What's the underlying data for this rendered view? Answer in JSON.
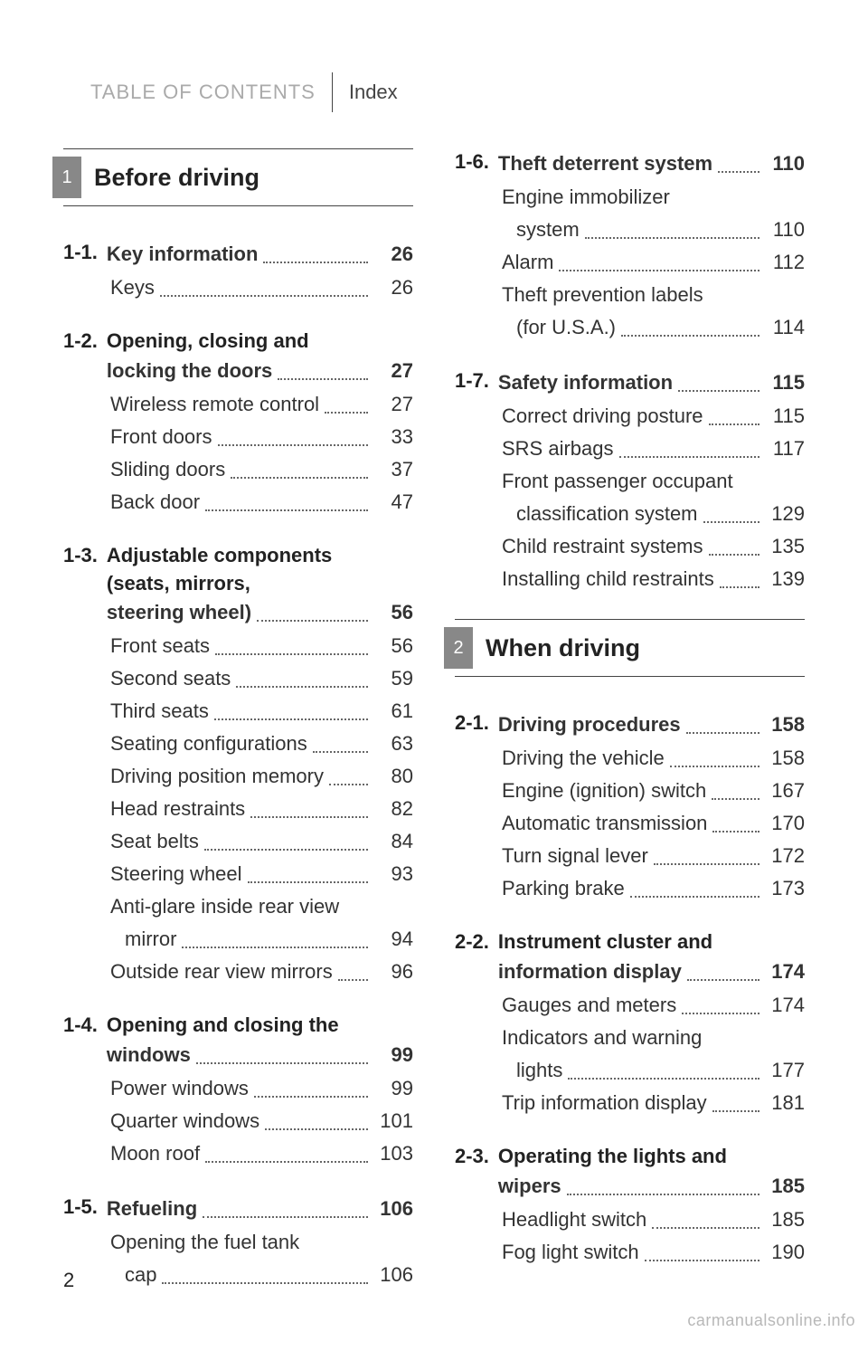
{
  "header": {
    "left": "TABLE OF CONTENTS",
    "right": "Index"
  },
  "footer_page": "2",
  "watermark": "carmanualsonline.info",
  "left_column": {
    "chapter": {
      "num": "1",
      "title": "Before driving"
    },
    "sections": [
      {
        "num": "1-1.",
        "title_lines": [
          "Key information"
        ],
        "page": "26",
        "entries": [
          {
            "lines": [
              "Keys"
            ],
            "page": "26"
          }
        ]
      },
      {
        "num": "1-2.",
        "title_lines": [
          "Opening, closing and",
          "locking the doors"
        ],
        "page": "27",
        "entries": [
          {
            "lines": [
              "Wireless remote control"
            ],
            "page": "27"
          },
          {
            "lines": [
              "Front doors"
            ],
            "page": "33"
          },
          {
            "lines": [
              "Sliding doors"
            ],
            "page": "37"
          },
          {
            "lines": [
              "Back door"
            ],
            "page": "47"
          }
        ]
      },
      {
        "num": "1-3.",
        "title_lines": [
          "Adjustable components",
          "(seats, mirrors,",
          "steering wheel)"
        ],
        "page": "56",
        "entries": [
          {
            "lines": [
              "Front seats"
            ],
            "page": "56"
          },
          {
            "lines": [
              "Second seats"
            ],
            "page": "59"
          },
          {
            "lines": [
              "Third seats"
            ],
            "page": "61"
          },
          {
            "lines": [
              "Seating configurations"
            ],
            "page": "63"
          },
          {
            "lines": [
              "Driving position memory"
            ],
            "page": "80"
          },
          {
            "lines": [
              "Head restraints"
            ],
            "page": "82"
          },
          {
            "lines": [
              "Seat belts"
            ],
            "page": "84"
          },
          {
            "lines": [
              "Steering wheel"
            ],
            "page": "93"
          },
          {
            "lines": [
              "Anti-glare inside rear view",
              "mirror"
            ],
            "page": "94"
          },
          {
            "lines": [
              "Outside rear view mirrors"
            ],
            "page": "96"
          }
        ]
      },
      {
        "num": "1-4.",
        "title_lines": [
          "Opening and closing the",
          "windows"
        ],
        "page": "99",
        "entries": [
          {
            "lines": [
              "Power windows"
            ],
            "page": "99"
          },
          {
            "lines": [
              "Quarter windows"
            ],
            "page": "101"
          },
          {
            "lines": [
              "Moon roof"
            ],
            "page": "103"
          }
        ]
      },
      {
        "num": "1-5.",
        "title_lines": [
          "Refueling"
        ],
        "page": "106",
        "entries": [
          {
            "lines": [
              "Opening the fuel tank",
              "cap"
            ],
            "page": "106"
          }
        ]
      }
    ]
  },
  "right_column": {
    "top_sections": [
      {
        "num": "1-6.",
        "title_lines": [
          "Theft deterrent system"
        ],
        "page": "110",
        "entries": [
          {
            "lines": [
              "Engine immobilizer",
              "system"
            ],
            "page": "110"
          },
          {
            "lines": [
              "Alarm"
            ],
            "page": "112"
          },
          {
            "lines": [
              "Theft prevention labels",
              "(for U.S.A.)"
            ],
            "page": "114"
          }
        ]
      },
      {
        "num": "1-7.",
        "title_lines": [
          "Safety information"
        ],
        "page": "115",
        "entries": [
          {
            "lines": [
              "Correct driving posture"
            ],
            "page": "115"
          },
          {
            "lines": [
              "SRS airbags"
            ],
            "page": "117"
          },
          {
            "lines": [
              "Front passenger occupant",
              "classification system"
            ],
            "page": "129"
          },
          {
            "lines": [
              "Child restraint systems"
            ],
            "page": "135"
          },
          {
            "lines": [
              "Installing child restraints"
            ],
            "page": "139"
          }
        ]
      }
    ],
    "chapter": {
      "num": "2",
      "title": "When driving"
    },
    "sections": [
      {
        "num": "2-1.",
        "title_lines": [
          "Driving procedures"
        ],
        "page": "158",
        "entries": [
          {
            "lines": [
              "Driving the vehicle"
            ],
            "page": "158"
          },
          {
            "lines": [
              "Engine (ignition) switch"
            ],
            "page": "167"
          },
          {
            "lines": [
              "Automatic transmission"
            ],
            "page": "170"
          },
          {
            "lines": [
              "Turn signal lever"
            ],
            "page": "172"
          },
          {
            "lines": [
              "Parking brake"
            ],
            "page": "173"
          }
        ]
      },
      {
        "num": "2-2.",
        "title_lines": [
          "Instrument cluster and",
          "information display"
        ],
        "page": "174",
        "entries": [
          {
            "lines": [
              "Gauges and meters"
            ],
            "page": "174"
          },
          {
            "lines": [
              "Indicators and warning",
              "lights"
            ],
            "page": "177"
          },
          {
            "lines": [
              "Trip information display"
            ],
            "page": "181"
          }
        ]
      },
      {
        "num": "2-3.",
        "title_lines": [
          "Operating the lights and",
          "wipers"
        ],
        "page": "185",
        "entries": [
          {
            "lines": [
              "Headlight switch"
            ],
            "page": "185"
          },
          {
            "lines": [
              "Fog light switch"
            ],
            "page": "190"
          }
        ]
      }
    ]
  }
}
